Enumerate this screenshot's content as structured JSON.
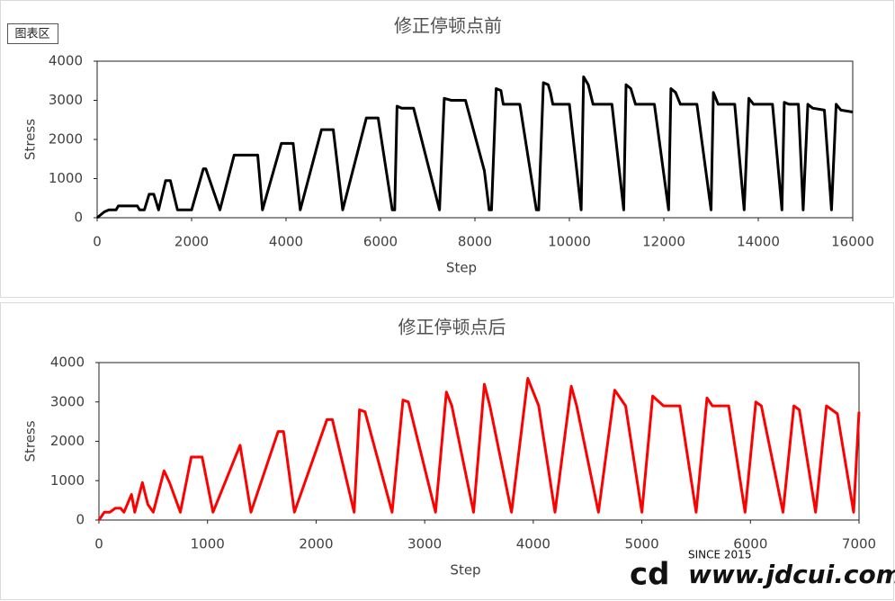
{
  "chart_area_label": "图表区",
  "watermark": {
    "since": "SINCE 2015",
    "site": "www.jdcui.com"
  },
  "chart_data": [
    {
      "type": "line",
      "title": "修正停顿点前",
      "xlabel": "Step",
      "ylabel": "Stress",
      "xlim": [
        0,
        16000
      ],
      "ylim": [
        0,
        4000
      ],
      "xticks": [
        0,
        2000,
        4000,
        6000,
        8000,
        10000,
        12000,
        14000,
        16000
      ],
      "yticks": [
        0,
        1000,
        2000,
        3000,
        4000
      ],
      "x": [
        0,
        150,
        250,
        400,
        450,
        850,
        900,
        1000,
        1100,
        1200,
        1300,
        1450,
        1550,
        1700,
        2000,
        2250,
        2300,
        2600,
        2900,
        3400,
        3500,
        3900,
        4150,
        4300,
        4750,
        5000,
        5200,
        5700,
        5950,
        6250,
        6300,
        6350,
        6450,
        6700,
        7250,
        7350,
        7500,
        7800,
        8200,
        8300,
        8350,
        8450,
        8550,
        8600,
        8950,
        9300,
        9350,
        9450,
        9550,
        9600,
        9650,
        10000,
        10250,
        10300,
        10400,
        10500,
        10900,
        11150,
        11200,
        11300,
        11400,
        11800,
        12100,
        12150,
        12250,
        12350,
        12700,
        13000,
        13050,
        13150,
        13500,
        13700,
        13800,
        13900,
        14300,
        14500,
        14550,
        14650,
        14850,
        14950,
        15050,
        15150,
        15400,
        15550,
        15650,
        15750,
        16000
      ],
      "series": [
        {
          "color": "#000000",
          "values": [
            0,
            150,
            200,
            200,
            300,
            300,
            200,
            200,
            600,
            600,
            200,
            950,
            950,
            200,
            200,
            1250,
            1250,
            200,
            1600,
            1600,
            200,
            1900,
            1900,
            200,
            2250,
            2250,
            200,
            2550,
            2550,
            200,
            200,
            2850,
            2800,
            2800,
            200,
            3050,
            3000,
            3000,
            1200,
            200,
            200,
            3300,
            3250,
            2900,
            2900,
            200,
            200,
            3450,
            3400,
            3200,
            2900,
            2900,
            200,
            3600,
            3400,
            2900,
            2900,
            200,
            3400,
            3300,
            2900,
            2900,
            200,
            3300,
            3200,
            2900,
            2900,
            200,
            3200,
            2900,
            2900,
            200,
            3050,
            2900,
            2900,
            200,
            2950,
            2900,
            2900,
            200,
            2900,
            2800,
            2750,
            200,
            2900,
            2750,
            2700
          ]
        }
      ]
    },
    {
      "type": "line",
      "title": "修正停顿点后",
      "xlabel": "Step",
      "ylabel": "Stress",
      "xlim": [
        0,
        7000
      ],
      "ylim": [
        0,
        4000
      ],
      "xticks": [
        0,
        1000,
        2000,
        3000,
        4000,
        5000,
        6000,
        7000
      ],
      "yticks": [
        0,
        1000,
        2000,
        3000,
        4000
      ],
      "x": [
        0,
        50,
        100,
        150,
        200,
        230,
        300,
        330,
        400,
        450,
        500,
        600,
        650,
        750,
        850,
        950,
        1050,
        1300,
        1400,
        1650,
        1700,
        1800,
        2100,
        2150,
        2350,
        2400,
        2450,
        2700,
        2800,
        2850,
        3100,
        3200,
        3250,
        3450,
        3550,
        3600,
        3800,
        3950,
        4050,
        4200,
        4350,
        4400,
        4600,
        4750,
        4850,
        5000,
        5100,
        5200,
        5350,
        5500,
        5600,
        5650,
        5800,
        5950,
        6050,
        6100,
        6300,
        6400,
        6450,
        6600,
        6700,
        6800,
        6950,
        7000
      ],
      "series": [
        {
          "color": "#ff0000",
          "values": [
            0,
            200,
            200,
            300,
            300,
            200,
            650,
            200,
            950,
            400,
            200,
            1250,
            950,
            200,
            1600,
            1600,
            200,
            1900,
            200,
            2250,
            2250,
            200,
            2550,
            2550,
            200,
            2800,
            2750,
            200,
            3050,
            3000,
            200,
            3250,
            2900,
            200,
            3450,
            2900,
            200,
            3600,
            2900,
            200,
            3400,
            2900,
            200,
            3300,
            2900,
            200,
            3150,
            2900,
            2900,
            200,
            3100,
            2900,
            2900,
            200,
            3000,
            2900,
            200,
            2900,
            2800,
            200,
            2900,
            2700,
            200,
            2750
          ]
        }
      ]
    }
  ]
}
